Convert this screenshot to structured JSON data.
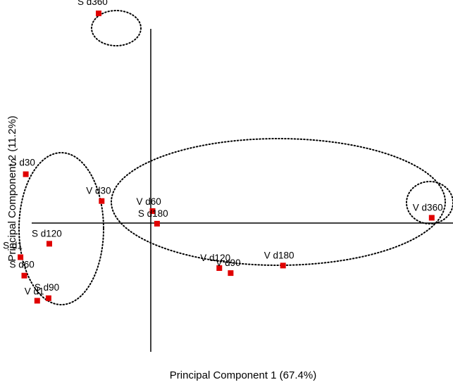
{
  "chart_data": {
    "type": "scatter",
    "xlabel": "Principal Component 1 (67.4%)",
    "ylabel": "Principal Component 2 (11.2%)",
    "xlim": [
      -1.77,
      4.2
    ],
    "ylim": [
      -1.84,
      2.78
    ],
    "grid": false,
    "legend": "none",
    "marker_color": "#e00000",
    "axis_color": "#000000",
    "points": [
      {
        "label": "S d360",
        "x": -0.47,
        "y": 2.62
      },
      {
        "label": "S d30",
        "x": -1.43,
        "y": 0.7
      },
      {
        "label": "V d30",
        "x": -0.43,
        "y": 0.38
      },
      {
        "label": "V d60",
        "x": 0.24,
        "y": 0.26
      },
      {
        "label": "S d180",
        "x": 0.3,
        "y": 0.11
      },
      {
        "label": "S d120",
        "x": -1.12,
        "y": -0.13
      },
      {
        "label": "S d1",
        "x": -1.5,
        "y": -0.29
      },
      {
        "label": "S d60",
        "x": -1.45,
        "y": -0.51
      },
      {
        "label": "S d90",
        "x": -1.13,
        "y": -0.78
      },
      {
        "label": "V d1",
        "x": -1.28,
        "y": -0.81
      },
      {
        "label": "V d120",
        "x": 1.12,
        "y": -0.42
      },
      {
        "label": "V d90",
        "x": 1.27,
        "y": -0.48
      },
      {
        "label": "V d180",
        "x": 1.96,
        "y": -0.39
      },
      {
        "label": "V d360",
        "x": 3.92,
        "y": 0.18
      }
    ]
  }
}
